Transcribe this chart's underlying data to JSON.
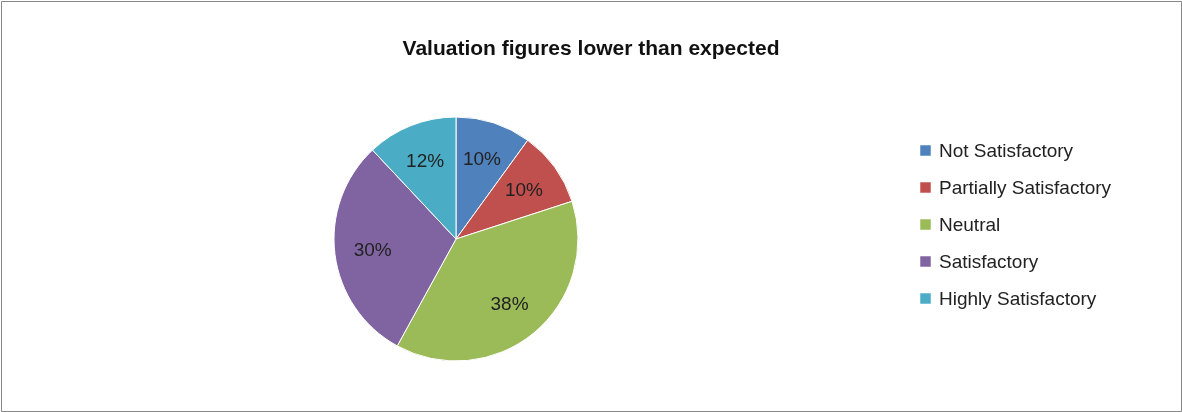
{
  "chart_data": {
    "type": "pie",
    "title": "Valuation figures lower than expected",
    "categories": [
      "Not Satisfactory",
      "Partially Satisfactory",
      "Neutral",
      "Satisfactory",
      "Highly Satisfactory"
    ],
    "values": [
      10,
      10,
      38,
      30,
      12
    ],
    "value_labels": [
      "10%",
      "10%",
      "38%",
      "30%",
      "12%"
    ],
    "colors": [
      "#4f81bd",
      "#c0504d",
      "#9bbb59",
      "#8064a2",
      "#4bacc6"
    ],
    "legend": "right"
  }
}
